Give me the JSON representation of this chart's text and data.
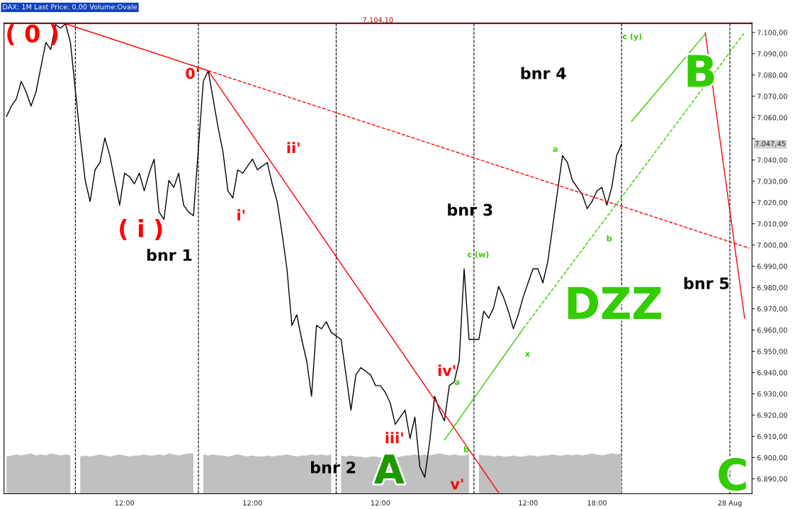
{
  "chart_data": {
    "type": "line",
    "title": "DAX: 1M Last Price: 0,00 Volume:Ovale",
    "categories": [
      null,
      null,
      null,
      null,
      null,
      null,
      null,
      null,
      null,
      null,
      null,
      null,
      null,
      null,
      null,
      null,
      null,
      null,
      null,
      null,
      null,
      null,
      null,
      null,
      "12:00",
      null,
      null,
      null,
      null,
      null,
      null,
      null,
      null,
      null,
      null,
      null,
      null,
      null,
      null,
      null,
      null,
      null,
      null,
      null,
      null,
      null,
      null,
      null,
      null,
      null,
      "12:00",
      null,
      null,
      null,
      null,
      null,
      null,
      null,
      null,
      null,
      null,
      null,
      null,
      null,
      null,
      null,
      null,
      null,
      null,
      null,
      null,
      null,
      null,
      null,
      null,
      null,
      "12:00",
      null,
      null,
      null,
      null,
      null,
      null,
      null,
      null,
      null,
      null,
      null,
      null,
      null,
      null,
      null,
      null,
      null,
      null,
      null,
      null,
      null,
      null,
      null,
      null,
      null,
      null,
      null,
      null,
      null,
      "12:00",
      null,
      null,
      null,
      null,
      null,
      null,
      null,
      null,
      null,
      null,
      null,
      null,
      null,
      "18:00",
      null,
      null,
      null,
      null,
      null,
      null,
      null,
      null,
      null,
      null,
      null,
      null,
      null,
      null,
      null,
      null,
      null,
      null,
      null,
      null,
      null,
      null,
      null,
      null,
      null,
      null,
      "28 Aug",
      null,
      null,
      null,
      null
    ],
    "ylim": [
      6883,
      7104.5
    ],
    "yticks": [
      {
        "value": 6890,
        "label": "6.890,00"
      },
      {
        "value": 6900,
        "label": "6.900,00"
      },
      {
        "value": 6910,
        "label": "6.910,00"
      },
      {
        "value": 6920,
        "label": "6.920,00"
      },
      {
        "value": 6930,
        "label": "6.930,00"
      },
      {
        "value": 6940,
        "label": "6.940,00"
      },
      {
        "value": 6950,
        "label": "6.950,00"
      },
      {
        "value": 6960,
        "label": "6.960,00"
      },
      {
        "value": 6970,
        "label": "6.970,00"
      },
      {
        "value": 6980,
        "label": "6.980,00"
      },
      {
        "value": 6990,
        "label": "6.990,00"
      },
      {
        "value": 7000,
        "label": "7.000,00"
      },
      {
        "value": 7010,
        "label": "7.010,00"
      },
      {
        "value": 7020,
        "label": "7.020,00"
      },
      {
        "value": 7030,
        "label": "7.030,00"
      },
      {
        "value": 7040,
        "label": "7.040,00"
      },
      {
        "value": 7050,
        "label": null
      },
      {
        "value": 7060,
        "label": "7.060,00"
      },
      {
        "value": 7070,
        "label": "7.070,00"
      },
      {
        "value": 7080,
        "label": "7.080,00"
      },
      {
        "value": 7090,
        "label": "7.090,00"
      },
      {
        "value": 7100,
        "label": "7.100,00"
      }
    ],
    "grid": false,
    "legend": false,
    "series": [
      {
        "type": "area",
        "color": "#c0c0c0",
        "values": [
          6900.5,
          6901,
          6901.5,
          6901,
          6901.5,
          6902,
          6901,
          6901.5,
          6901,
          6902,
          6901.5,
          6901,
          6901.5,
          6901,
          null,
          6900.5,
          6901,
          6900.5,
          6901,
          6901.5,
          6901,
          6900.5,
          6901,
          6901.5,
          6901,
          6900.5,
          6901,
          6901,
          6901.5,
          6901,
          6901,
          6901.5,
          6901,
          6902,
          6901.5,
          6901,
          6901.5,
          6902,
          6902,
          null,
          6901.5,
          6901,
          6901.5,
          6901,
          6901,
          6900.5,
          6901,
          6901.5,
          6901,
          6900.5,
          6901,
          6900.5,
          6900.5,
          6901,
          6900.5,
          6901,
          6901,
          6901.5,
          6901,
          6900.5,
          6901,
          6901,
          6901.5,
          6901,
          6901.5,
          6901,
          6901.5,
          null,
          6901,
          6900.5,
          6901,
          6900.5,
          6900.5,
          6900,
          6900.5,
          6900.5,
          6900,
          6900.5,
          6900.5,
          6900,
          6900.5,
          6901,
          6901,
          6901.5,
          6901,
          6901.5,
          6901,
          6901.5,
          6902,
          6901.5,
          6901,
          6901.5,
          6901,
          6901,
          6901.5,
          null,
          6901.5,
          6901,
          6901,
          6900.5,
          6901,
          6900.5,
          6900.5,
          6901,
          6900.5,
          6900.5,
          6901,
          6901,
          6900.5,
          6901,
          6901,
          6901.5,
          6901,
          6901,
          6901.5,
          6901,
          6901.5,
          6901,
          6901.5,
          6902,
          6901.5,
          6901,
          6901.5,
          6902,
          6901.5,
          6902,
          null,
          null,
          null,
          null,
          null,
          null,
          null,
          null,
          null,
          null,
          null,
          null,
          null,
          null,
          null,
          null,
          null,
          null,
          null,
          null,
          null,
          null,
          null,
          null,
          null,
          null
        ]
      },
      {
        "color": "#000000",
        "values": [
          7060.4,
          7065.4,
          7068.7,
          7077.0,
          7072.0,
          7065.4,
          7072.0,
          7083.7,
          7095.3,
          7092.0,
          7103.7,
          7102.0,
          7104.1,
          7095.3,
          null,
          7050.4,
          7030.4,
          7020.5,
          7035.4,
          7038.8,
          7050.4,
          7042.1,
          7030.4,
          7018.8,
          7033.8,
          7032.1,
          7028.8,
          7033.8,
          7025.5,
          7033.8,
          7040.4,
          7015.5,
          7012.1,
          7030.4,
          7027.1,
          7033.8,
          7018.8,
          7015.5,
          7013.8,
          null,
          7077.0,
          7082.0,
          7068.7,
          7055.4,
          7043.8,
          7025.5,
          7022.1,
          7035.4,
          7033.8,
          7037.1,
          7040.4,
          7035.4,
          7037.1,
          7038.8,
          7028.8,
          7020.5,
          7005.5,
          6988.8,
          6962.2,
          6967.2,
          6955.6,
          6945.6,
          6928.9,
          6962.2,
          6960.6,
          6963.9,
          6958.9,
          null,
          6955.6,
          6938.9,
          6922.3,
          6938.9,
          6942.3,
          6940.6,
          6938.9,
          6933.9,
          6933.9,
          6930.6,
          6925.6,
          6915.6,
          6919.0,
          6922.3,
          6909.0,
          6919.0,
          6895.7,
          6890.7,
          6907.3,
          6928.9,
          6922.3,
          6917.3,
          6933.9,
          6935.6,
          6945.6,
          6988.8,
          6955.6,
          null,
          6955.6,
          6968.9,
          6965.6,
          6970.5,
          6980.5,
          6975.5,
          6968.9,
          6960.6,
          6967.2,
          6975.5,
          6982.2,
          6988.8,
          6988.8,
          6982.2,
          6992.2,
          7008.8,
          7025.5,
          7042.1,
          7038.8,
          7030.4,
          7027.1,
          7023.8,
          7017.1,
          7020.5,
          7025.5,
          7027.1,
          7018.8,
          7027.1,
          7042.1,
          7047.45,
          null,
          null,
          null,
          null,
          null,
          null,
          null,
          null,
          null,
          null,
          null,
          null,
          null,
          null,
          null,
          null,
          null,
          null,
          null,
          null,
          null,
          null,
          null,
          null,
          null,
          null
        ]
      },
      {
        "color": "#ff0000",
        "values": [
          null,
          null,
          null,
          null,
          null,
          null,
          null,
          null,
          null,
          null,
          null,
          null,
          7104.1,
          null,
          null,
          null,
          null,
          null,
          null,
          null,
          null,
          null,
          null,
          null,
          null,
          null,
          null,
          null,
          null,
          null,
          null,
          null,
          null,
          null,
          null,
          null,
          null,
          null,
          null,
          null,
          null,
          7082.0,
          null,
          null,
          null,
          null,
          null,
          null,
          null,
          null,
          null,
          null,
          null,
          null,
          null,
          null,
          null,
          null,
          null,
          null,
          null,
          null,
          null,
          null,
          null,
          null,
          null,
          null,
          null,
          null,
          null,
          null,
          null,
          null,
          null,
          null,
          null,
          null,
          null,
          null,
          null,
          null,
          null,
          null,
          null,
          null,
          null,
          null,
          null,
          null,
          null,
          null,
          null,
          null,
          null,
          null,
          null,
          null,
          null,
          null,
          6883.5,
          null,
          null,
          null,
          null,
          null,
          null,
          null,
          null,
          null,
          null,
          null,
          null,
          null,
          null,
          null,
          null,
          null,
          null,
          null,
          null,
          null,
          null,
          null,
          null,
          null,
          null,
          null,
          null,
          null,
          null,
          null,
          null,
          null,
          null,
          null,
          null,
          null,
          null,
          null,
          null,
          null,
          null,
          null,
          null,
          null,
          null,
          null,
          null,
          null,
          null,
          null
        ]
      },
      {
        "color": "#ff0000",
        "line_style": "dashed",
        "values": [
          null,
          null,
          null,
          null,
          null,
          null,
          null,
          null,
          null,
          null,
          null,
          null,
          null,
          null,
          null,
          null,
          null,
          null,
          null,
          null,
          null,
          null,
          null,
          null,
          null,
          null,
          null,
          null,
          null,
          null,
          null,
          null,
          null,
          null,
          null,
          null,
          null,
          null,
          null,
          null,
          null,
          7082.0,
          null,
          null,
          null,
          null,
          null,
          null,
          null,
          null,
          null,
          null,
          null,
          null,
          null,
          null,
          null,
          null,
          null,
          null,
          null,
          null,
          null,
          null,
          null,
          null,
          null,
          null,
          null,
          null,
          null,
          null,
          null,
          null,
          null,
          null,
          null,
          null,
          null,
          null,
          null,
          null,
          null,
          null,
          null,
          null,
          null,
          null,
          null,
          null,
          null,
          null,
          null,
          null,
          null,
          null,
          null,
          null,
          null,
          null,
          null,
          null,
          null,
          null,
          null,
          null,
          null,
          null,
          null,
          null,
          null,
          null,
          null,
          null,
          null,
          null,
          null,
          null,
          null,
          null,
          null,
          null,
          null,
          null,
          null,
          null,
          null,
          null,
          null,
          null,
          null,
          null,
          null,
          null,
          null,
          null,
          null,
          null,
          null,
          null,
          null,
          null,
          null,
          null,
          null,
          null,
          null,
          null,
          null,
          null,
          null,
          6998.5
        ]
      },
      {
        "color": "#33cc00",
        "values": [
          null,
          null,
          null,
          null,
          null,
          null,
          null,
          null,
          null,
          null,
          null,
          null,
          null,
          null,
          null,
          null,
          null,
          null,
          null,
          null,
          null,
          null,
          null,
          null,
          null,
          null,
          null,
          null,
          null,
          null,
          null,
          null,
          null,
          null,
          null,
          null,
          null,
          null,
          null,
          null,
          null,
          null,
          null,
          null,
          null,
          null,
          null,
          null,
          null,
          null,
          null,
          null,
          null,
          null,
          null,
          null,
          null,
          null,
          null,
          null,
          null,
          null,
          null,
          null,
          null,
          null,
          null,
          null,
          null,
          null,
          null,
          null,
          null,
          null,
          null,
          null,
          null,
          null,
          null,
          null,
          null,
          null,
          null,
          null,
          null,
          null,
          null,
          null,
          null,
          6908.3,
          null,
          null,
          null,
          null,
          null,
          null,
          null,
          null,
          null,
          null,
          null,
          null,
          null,
          null,
          null,
          6960.6,
          null,
          null,
          null,
          null,
          null,
          null,
          null,
          null,
          null,
          null,
          null,
          null,
          null,
          null,
          null,
          null,
          null,
          null,
          null,
          null,
          null,
          null,
          null,
          null,
          null,
          null,
          null,
          null,
          null,
          null,
          null,
          null,
          null,
          null,
          null,
          null,
          null,
          null,
          null,
          null,
          null,
          null,
          null,
          null,
          null,
          null
        ]
      },
      {
        "color": "#33cc00",
        "line_style": "dashed",
        "values": [
          null,
          null,
          null,
          null,
          null,
          null,
          null,
          null,
          null,
          null,
          null,
          null,
          null,
          null,
          null,
          null,
          null,
          null,
          null,
          null,
          null,
          null,
          null,
          null,
          null,
          null,
          null,
          null,
          null,
          null,
          null,
          null,
          null,
          null,
          null,
          null,
          null,
          null,
          null,
          null,
          null,
          null,
          null,
          null,
          null,
          null,
          null,
          null,
          null,
          null,
          null,
          null,
          null,
          null,
          null,
          null,
          null,
          null,
          null,
          null,
          null,
          null,
          null,
          null,
          null,
          null,
          null,
          null,
          null,
          null,
          null,
          null,
          null,
          null,
          null,
          null,
          null,
          null,
          null,
          null,
          null,
          null,
          null,
          null,
          null,
          null,
          null,
          null,
          null,
          null,
          null,
          null,
          null,
          null,
          null,
          null,
          null,
          null,
          null,
          null,
          null,
          null,
          null,
          null,
          null,
          6960.6,
          null,
          null,
          null,
          null,
          null,
          null,
          null,
          null,
          null,
          null,
          null,
          null,
          null,
          null,
          null,
          null,
          null,
          null,
          null,
          null,
          null,
          null,
          null,
          null,
          null,
          null,
          null,
          null,
          null,
          null,
          null,
          null,
          null,
          null,
          null,
          null,
          null,
          null,
          null,
          null,
          null,
          null,
          null,
          null,
          7100.0,
          null
        ]
      },
      {
        "color": "#33cc00",
        "values": [
          null,
          null,
          null,
          null,
          null,
          null,
          null,
          null,
          null,
          null,
          null,
          null,
          null,
          null,
          null,
          null,
          null,
          null,
          null,
          null,
          null,
          null,
          null,
          null,
          null,
          null,
          null,
          null,
          null,
          null,
          null,
          null,
          null,
          null,
          null,
          null,
          null,
          null,
          null,
          null,
          null,
          null,
          null,
          null,
          null,
          null,
          null,
          null,
          null,
          null,
          null,
          null,
          null,
          null,
          null,
          null,
          null,
          null,
          null,
          null,
          null,
          null,
          null,
          null,
          null,
          null,
          null,
          null,
          null,
          null,
          null,
          null,
          null,
          null,
          null,
          null,
          null,
          null,
          null,
          null,
          null,
          null,
          null,
          null,
          null,
          null,
          null,
          null,
          null,
          null,
          null,
          null,
          null,
          null,
          null,
          null,
          null,
          null,
          null,
          null,
          null,
          null,
          null,
          null,
          null,
          null,
          null,
          null,
          null,
          null,
          null,
          null,
          null,
          null,
          null,
          null,
          null,
          null,
          null,
          null,
          null,
          null,
          null,
          null,
          null,
          null,
          null,
          7058.1,
          null,
          null,
          null,
          null,
          null,
          null,
          null,
          null,
          null,
          null,
          null,
          null,
          null,
          null,
          7099.3,
          null,
          null,
          null,
          null,
          null,
          null,
          null,
          null,
          null
        ]
      },
      {
        "color": "#ff0000",
        "values": [
          null,
          null,
          null,
          null,
          null,
          null,
          null,
          null,
          null,
          null,
          null,
          null,
          null,
          null,
          null,
          null,
          null,
          null,
          null,
          null,
          null,
          null,
          null,
          null,
          null,
          null,
          null,
          null,
          null,
          null,
          null,
          null,
          null,
          null,
          null,
          null,
          null,
          null,
          null,
          null,
          null,
          null,
          null,
          null,
          null,
          null,
          null,
          null,
          null,
          null,
          null,
          null,
          null,
          null,
          null,
          null,
          null,
          null,
          null,
          null,
          null,
          null,
          null,
          null,
          null,
          null,
          null,
          null,
          null,
          null,
          null,
          null,
          null,
          null,
          null,
          null,
          null,
          null,
          null,
          null,
          null,
          null,
          null,
          null,
          null,
          null,
          null,
          null,
          null,
          null,
          null,
          null,
          null,
          null,
          null,
          null,
          null,
          null,
          null,
          null,
          null,
          null,
          null,
          null,
          null,
          null,
          null,
          null,
          null,
          null,
          null,
          null,
          null,
          null,
          null,
          null,
          null,
          null,
          null,
          null,
          null,
          null,
          null,
          null,
          null,
          null,
          null,
          null,
          null,
          null,
          null,
          null,
          null,
          null,
          null,
          null,
          null,
          null,
          null,
          null,
          null,
          null,
          7100.0,
          null,
          null,
          null,
          null,
          null,
          null,
          null,
          6965.6,
          null
        ]
      }
    ],
    "ref_lines": [
      {
        "axis": "y",
        "value": 7104.1,
        "label": "7.104,10",
        "color": "#a00000",
        "line_style": "solid"
      }
    ],
    "annotations": [
      "( 0 )",
      "0'",
      "( i )",
      "i'",
      "ii'",
      "iii'",
      "iv'",
      "v'",
      "bnr 1",
      "bnr 2",
      "bnr 3",
      "bnr 4",
      "bnr 5",
      "A",
      "B",
      "C",
      "DZZ",
      "a",
      "b",
      "c (w)",
      "x",
      "a",
      "b",
      "c (y)",
      "7.047,45"
    ]
  }
}
